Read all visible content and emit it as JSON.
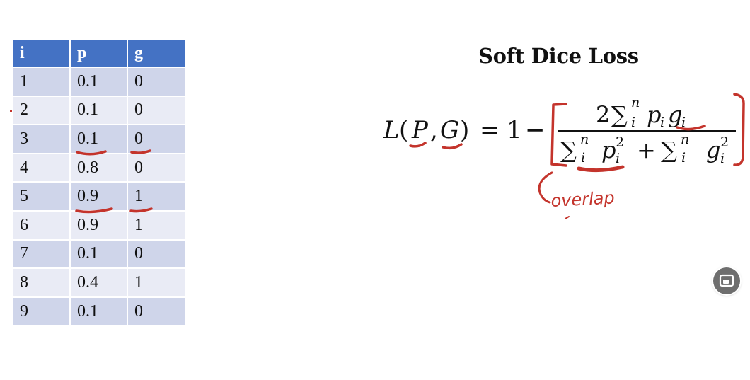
{
  "table": {
    "headers": [
      "i",
      "p",
      "g"
    ],
    "rows": [
      [
        "1",
        "0.1",
        "0"
      ],
      [
        "2",
        "0.1",
        "0"
      ],
      [
        "3",
        "0.1",
        "0"
      ],
      [
        "4",
        "0.8",
        "0"
      ],
      [
        "5",
        "0.9",
        "1"
      ],
      [
        "6",
        "0.9",
        "1"
      ],
      [
        "7",
        "0.1",
        "0"
      ],
      [
        "8",
        "0.4",
        "1"
      ],
      [
        "9",
        "0.1",
        "0"
      ]
    ]
  },
  "formula": {
    "title": "Soft Dice Loss",
    "lhs": "L(P, G) = 1 −",
    "numerator": "2 Σᵢⁿ pᵢgᵢ",
    "denominator": "Σᵢⁿ pᵢ² + Σᵢⁿ gᵢ²"
  },
  "annotation": {
    "text": "overlap",
    "ink_color": "#c4342c"
  },
  "pip_button": {
    "icon": "picture-in-picture-icon"
  }
}
